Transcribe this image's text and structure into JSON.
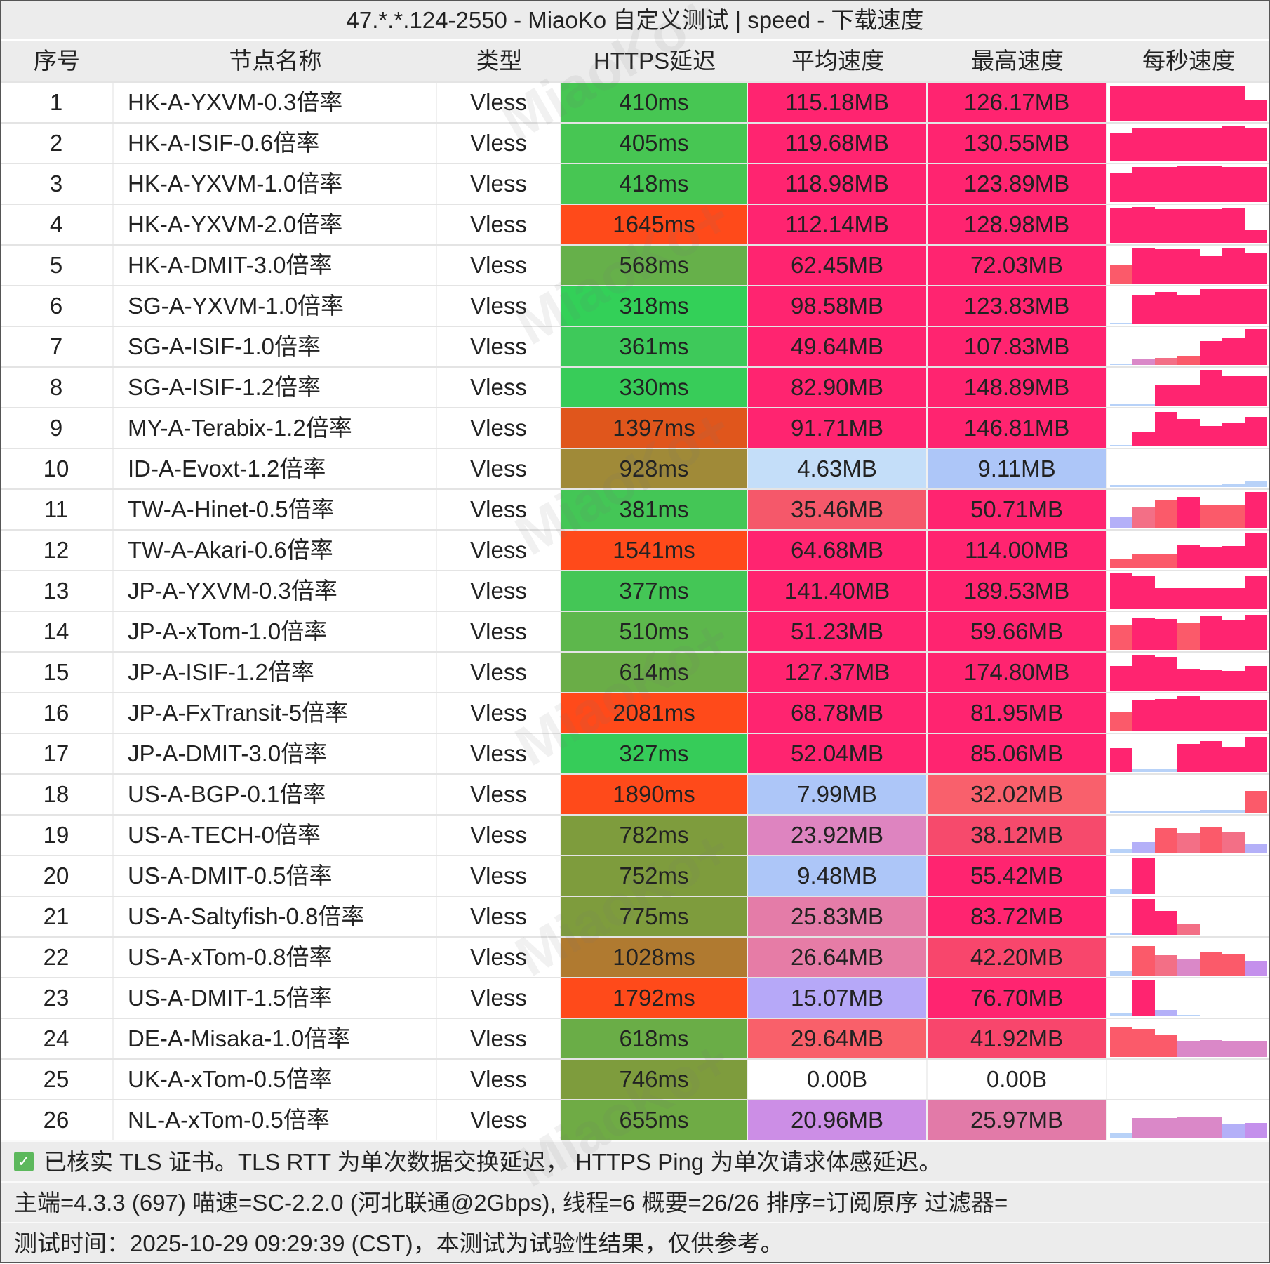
{
  "title": "47.*.*.124-2550 - MiaoKo 自定义测试 | speed - 下载速度",
  "headers": [
    "序号",
    "节点名称",
    "类型",
    "HTTPS延迟",
    "平均速度",
    "最高速度",
    "每秒速度"
  ],
  "watermark": "MiaoKo+",
  "palette": {
    "P": "#ff2470",
    "R": "#fb5a6a",
    "S": "#f36f86",
    "M": "#da88c8",
    "V": "#c490ec",
    "L": "#b4b0f8",
    "B": "#b8d2f8"
  },
  "rows": [
    {
      "id": "1",
      "name": "HK-A-YXVM-0.3倍率",
      "type": "Vless",
      "latency": "410ms",
      "lat_color": "#47c653",
      "avg": "115.18MB",
      "avg_color": "#ff2470",
      "max": "126.17MB",
      "max_color": "#ff2470",
      "bars": [
        [
          0.95,
          "P"
        ],
        [
          0.95,
          "P"
        ],
        [
          0.97,
          "P"
        ],
        [
          0.97,
          "P"
        ],
        [
          0.97,
          "P"
        ],
        [
          0.95,
          "P"
        ],
        [
          0.55,
          "P"
        ]
      ]
    },
    {
      "id": "2",
      "name": "HK-A-ISIF-0.6倍率",
      "type": "Vless",
      "latency": "405ms",
      "lat_color": "#47c653",
      "avg": "119.68MB",
      "avg_color": "#ff2470",
      "max": "130.55MB",
      "max_color": "#ff2470",
      "bars": [
        [
          0.78,
          "P"
        ],
        [
          0.92,
          "P"
        ],
        [
          0.93,
          "P"
        ],
        [
          0.93,
          "P"
        ],
        [
          0.93,
          "P"
        ],
        [
          0.97,
          "P"
        ],
        [
          0.92,
          "P"
        ]
      ]
    },
    {
      "id": "3",
      "name": "HK-A-YXVM-1.0倍率",
      "type": "Vless",
      "latency": "418ms",
      "lat_color": "#47c653",
      "avg": "118.98MB",
      "avg_color": "#ff2470",
      "max": "123.89MB",
      "max_color": "#ff2470",
      "bars": [
        [
          0.8,
          "P"
        ],
        [
          0.97,
          "P"
        ],
        [
          0.97,
          "P"
        ],
        [
          0.98,
          "P"
        ],
        [
          0.98,
          "P"
        ],
        [
          0.97,
          "P"
        ],
        [
          0.97,
          "P"
        ]
      ]
    },
    {
      "id": "4",
      "name": "HK-A-YXVM-2.0倍率",
      "type": "Vless",
      "latency": "1645ms",
      "lat_color": "#ff4a1a",
      "avg": "112.14MB",
      "avg_color": "#ff2470",
      "max": "128.98MB",
      "max_color": "#ff2470",
      "bars": [
        [
          0.95,
          "P"
        ],
        [
          0.98,
          "P"
        ],
        [
          0.92,
          "P"
        ],
        [
          0.92,
          "P"
        ],
        [
          0.92,
          "P"
        ],
        [
          0.95,
          "P"
        ],
        [
          0.35,
          "P"
        ]
      ]
    },
    {
      "id": "5",
      "name": "HK-A-DMIT-3.0倍率",
      "type": "Vless",
      "latency": "568ms",
      "lat_color": "#66b04a",
      "avg": "62.45MB",
      "avg_color": "#ff2470",
      "max": "72.03MB",
      "max_color": "#ff2470",
      "bars": [
        [
          0.5,
          "R"
        ],
        [
          0.97,
          "P"
        ],
        [
          0.95,
          "P"
        ],
        [
          0.95,
          "P"
        ],
        [
          0.75,
          "P"
        ],
        [
          0.97,
          "P"
        ],
        [
          0.85,
          "P"
        ]
      ]
    },
    {
      "id": "6",
      "name": "SG-A-YXVM-1.0倍率",
      "type": "Vless",
      "latency": "318ms",
      "lat_color": "#33d058",
      "avg": "98.58MB",
      "avg_color": "#ff2470",
      "max": "123.83MB",
      "max_color": "#ff2470",
      "bars": [
        [
          0.03,
          "B"
        ],
        [
          0.78,
          "P"
        ],
        [
          0.88,
          "P"
        ],
        [
          0.78,
          "P"
        ],
        [
          0.97,
          "P"
        ],
        [
          0.97,
          "P"
        ],
        [
          0.97,
          "P"
        ]
      ]
    },
    {
      "id": "7",
      "name": "SG-A-ISIF-1.0倍率",
      "type": "Vless",
      "latency": "361ms",
      "lat_color": "#3ec95a",
      "avg": "49.64MB",
      "avg_color": "#ff2470",
      "max": "107.83MB",
      "max_color": "#ff2470",
      "bars": [
        [
          0.03,
          "B"
        ],
        [
          0.18,
          "M"
        ],
        [
          0.2,
          "S"
        ],
        [
          0.25,
          "R"
        ],
        [
          0.65,
          "P"
        ],
        [
          0.75,
          "P"
        ],
        [
          0.98,
          "P"
        ]
      ]
    },
    {
      "id": "8",
      "name": "SG-A-ISIF-1.2倍率",
      "type": "Vless",
      "latency": "330ms",
      "lat_color": "#38cc59",
      "avg": "82.90MB",
      "avg_color": "#ff2470",
      "max": "148.89MB",
      "max_color": "#ff2470",
      "bars": [
        [
          0.04,
          "B"
        ],
        [
          0.04,
          "B"
        ],
        [
          0.55,
          "P"
        ],
        [
          0.55,
          "P"
        ],
        [
          0.98,
          "P"
        ],
        [
          0.8,
          "P"
        ],
        [
          0.8,
          "P"
        ]
      ]
    },
    {
      "id": "9",
      "name": "MY-A-Terabix-1.2倍率",
      "type": "Vless",
      "latency": "1397ms",
      "lat_color": "#e0561c",
      "avg": "91.71MB",
      "avg_color": "#ff2470",
      "max": "146.81MB",
      "max_color": "#ff2470",
      "bars": [
        [
          0.03,
          "B"
        ],
        [
          0.4,
          "P"
        ],
        [
          0.95,
          "P"
        ],
        [
          0.75,
          "P"
        ],
        [
          0.55,
          "P"
        ],
        [
          0.65,
          "P"
        ],
        [
          0.8,
          "P"
        ]
      ]
    },
    {
      "id": "10",
      "name": "ID-A-Evoxt-1.2倍率",
      "type": "Vless",
      "latency": "928ms",
      "lat_color": "#a08a38",
      "avg": "4.63MB",
      "avg_color": "#c4def9",
      "max": "9.11MB",
      "max_color": "#adc6f8",
      "bars": [
        [
          0.06,
          "B"
        ],
        [
          0.06,
          "B"
        ],
        [
          0.05,
          "B"
        ],
        [
          0.05,
          "B"
        ],
        [
          0.05,
          "B"
        ],
        [
          0.1,
          "B"
        ],
        [
          0.17,
          "B"
        ]
      ]
    },
    {
      "id": "11",
      "name": "TW-A-Hinet-0.5倍率",
      "type": "Vless",
      "latency": "381ms",
      "lat_color": "#44c656",
      "avg": "35.46MB",
      "avg_color": "#f5586a",
      "max": "50.71MB",
      "max_color": "#ff2470",
      "bars": [
        [
          0.3,
          "L"
        ],
        [
          0.55,
          "S"
        ],
        [
          0.75,
          "R"
        ],
        [
          0.85,
          "P"
        ],
        [
          0.62,
          "R"
        ],
        [
          0.63,
          "R"
        ],
        [
          0.98,
          "P"
        ]
      ]
    },
    {
      "id": "12",
      "name": "TW-A-Akari-0.6倍率",
      "type": "Vless",
      "latency": "1541ms",
      "lat_color": "#ff4a1a",
      "avg": "64.68MB",
      "avg_color": "#ff2470",
      "max": "114.00MB",
      "max_color": "#ff2470",
      "bars": [
        [
          0.25,
          "R"
        ],
        [
          0.38,
          "R"
        ],
        [
          0.38,
          "R"
        ],
        [
          0.65,
          "P"
        ],
        [
          0.58,
          "P"
        ],
        [
          0.62,
          "P"
        ],
        [
          0.98,
          "P"
        ]
      ]
    },
    {
      "id": "13",
      "name": "JP-A-YXVM-0.3倍率",
      "type": "Vless",
      "latency": "377ms",
      "lat_color": "#44c656",
      "avg": "141.40MB",
      "avg_color": "#ff2470",
      "max": "189.53MB",
      "max_color": "#ff2470",
      "bars": [
        [
          0.98,
          "P"
        ],
        [
          0.9,
          "P"
        ],
        [
          0.57,
          "P"
        ],
        [
          0.57,
          "P"
        ],
        [
          0.57,
          "P"
        ],
        [
          0.57,
          "P"
        ],
        [
          0.9,
          "P"
        ]
      ]
    },
    {
      "id": "14",
      "name": "JP-A-xTom-1.0倍率",
      "type": "Vless",
      "latency": "510ms",
      "lat_color": "#5db74c",
      "avg": "51.23MB",
      "avg_color": "#ff2470",
      "max": "59.66MB",
      "max_color": "#ff2470",
      "bars": [
        [
          0.7,
          "R"
        ],
        [
          0.87,
          "P"
        ],
        [
          0.85,
          "P"
        ],
        [
          0.75,
          "R"
        ],
        [
          0.92,
          "P"
        ],
        [
          0.8,
          "P"
        ],
        [
          0.97,
          "P"
        ]
      ]
    },
    {
      "id": "15",
      "name": "JP-A-ISIF-1.2倍率",
      "type": "Vless",
      "latency": "614ms",
      "lat_color": "#6aad47",
      "avg": "127.37MB",
      "avg_color": "#ff2470",
      "max": "174.80MB",
      "max_color": "#ff2470",
      "bars": [
        [
          0.68,
          "P"
        ],
        [
          0.98,
          "P"
        ],
        [
          0.92,
          "P"
        ],
        [
          0.6,
          "P"
        ],
        [
          0.58,
          "P"
        ],
        [
          0.53,
          "P"
        ],
        [
          0.68,
          "P"
        ]
      ]
    },
    {
      "id": "16",
      "name": "JP-A-FxTransit-5倍率",
      "type": "Vless",
      "latency": "2081ms",
      "lat_color": "#ff4a1a",
      "avg": "68.78MB",
      "avg_color": "#ff2470",
      "max": "81.95MB",
      "max_color": "#ff2470",
      "bars": [
        [
          0.52,
          "R"
        ],
        [
          0.85,
          "P"
        ],
        [
          0.88,
          "P"
        ],
        [
          0.98,
          "P"
        ],
        [
          0.87,
          "P"
        ],
        [
          0.87,
          "P"
        ],
        [
          0.85,
          "P"
        ]
      ]
    },
    {
      "id": "17",
      "name": "JP-A-DMIT-3.0倍率",
      "type": "Vless",
      "latency": "327ms",
      "lat_color": "#36cc59",
      "avg": "52.04MB",
      "avg_color": "#ff2470",
      "max": "85.06MB",
      "max_color": "#ff2470",
      "bars": [
        [
          0.65,
          "P"
        ],
        [
          0.1,
          "B"
        ],
        [
          0.08,
          "B"
        ],
        [
          0.77,
          "P"
        ],
        [
          0.85,
          "P"
        ],
        [
          0.7,
          "P"
        ],
        [
          0.97,
          "P"
        ]
      ]
    },
    {
      "id": "18",
      "name": "US-A-BGP-0.1倍率",
      "type": "Vless",
      "latency": "1890ms",
      "lat_color": "#ff4a1a",
      "avg": "7.99MB",
      "avg_color": "#adc6f8",
      "max": "32.02MB",
      "max_color": "#f9606c",
      "bars": [
        [
          0.05,
          "B"
        ],
        [
          0.06,
          "B"
        ],
        [
          0.06,
          "B"
        ],
        [
          0.06,
          "B"
        ],
        [
          0.07,
          "B"
        ],
        [
          0.08,
          "B"
        ],
        [
          0.6,
          "R"
        ]
      ]
    },
    {
      "id": "19",
      "name": "US-A-TECH-0倍率",
      "type": "Vless",
      "latency": "782ms",
      "lat_color": "#7e9c3d",
      "avg": "23.92MB",
      "avg_color": "#de84c0",
      "max": "38.12MB",
      "max_color": "#f64a6c",
      "bars": [
        [
          0.12,
          "B"
        ],
        [
          0.3,
          "L"
        ],
        [
          0.7,
          "R"
        ],
        [
          0.55,
          "S"
        ],
        [
          0.73,
          "R"
        ],
        [
          0.57,
          "S"
        ],
        [
          0.25,
          "L"
        ]
      ]
    },
    {
      "id": "20",
      "name": "US-A-DMIT-0.5倍率",
      "type": "Vless",
      "latency": "752ms",
      "lat_color": "#7e9c3d",
      "avg": "9.48MB",
      "avg_color": "#adc6f8",
      "max": "55.42MB",
      "max_color": "#ff2470",
      "bars": [
        [
          0.15,
          "B"
        ],
        [
          0.98,
          "P"
        ],
        [
          0,
          "P"
        ],
        [
          0,
          "P"
        ],
        [
          0,
          "P"
        ],
        [
          0,
          "P"
        ],
        [
          0,
          "P"
        ]
      ]
    },
    {
      "id": "21",
      "name": "US-A-Saltyfish-0.8倍率",
      "type": "Vless",
      "latency": "775ms",
      "lat_color": "#7e9c3d",
      "avg": "25.83MB",
      "avg_color": "#e47ca8",
      "max": "83.72MB",
      "max_color": "#ff2470",
      "bars": [
        [
          0.05,
          "B"
        ],
        [
          0.98,
          "P"
        ],
        [
          0.65,
          "P"
        ],
        [
          0.3,
          "S"
        ],
        [
          0,
          "P"
        ],
        [
          0,
          "P"
        ],
        [
          0,
          "P"
        ]
      ]
    },
    {
      "id": "22",
      "name": "US-A-xTom-0.8倍率",
      "type": "Vless",
      "latency": "1028ms",
      "lat_color": "#b07a30",
      "avg": "26.64MB",
      "avg_color": "#e67ca6",
      "max": "42.20MB",
      "max_color": "#f8466c",
      "bars": [
        [
          0.14,
          "B"
        ],
        [
          0.8,
          "R"
        ],
        [
          0.55,
          "S"
        ],
        [
          0.45,
          "M"
        ],
        [
          0.63,
          "R"
        ],
        [
          0.6,
          "R"
        ],
        [
          0.4,
          "V"
        ]
      ]
    },
    {
      "id": "23",
      "name": "US-A-DMIT-1.5倍率",
      "type": "Vless",
      "latency": "1792ms",
      "lat_color": "#ff4a1a",
      "avg": "15.07MB",
      "avg_color": "#b6a8f8",
      "max": "76.70MB",
      "max_color": "#ff2470",
      "bars": [
        [
          0.1,
          "B"
        ],
        [
          0.98,
          "P"
        ],
        [
          0.18,
          "L"
        ],
        [
          0.02,
          "B"
        ],
        [
          0,
          "P"
        ],
        [
          0,
          "P"
        ],
        [
          0,
          "P"
        ]
      ]
    },
    {
      "id": "24",
      "name": "DE-A-Misaka-1.0倍率",
      "type": "Vless",
      "latency": "618ms",
      "lat_color": "#6aad47",
      "avg": "29.64MB",
      "avg_color": "#f9606a",
      "max": "41.92MB",
      "max_color": "#f8466c",
      "bars": [
        [
          0.8,
          "R"
        ],
        [
          0.77,
          "R"
        ],
        [
          0.6,
          "R"
        ],
        [
          0.45,
          "M"
        ],
        [
          0.47,
          "M"
        ],
        [
          0.45,
          "M"
        ],
        [
          0.45,
          "M"
        ]
      ]
    },
    {
      "id": "25",
      "name": "UK-A-xTom-0.5倍率",
      "type": "Vless",
      "latency": "746ms",
      "lat_color": "#7e9c3d",
      "avg": "0.00B",
      "avg_color": "#ffffff",
      "max": "0.00B",
      "max_color": "#ffffff",
      "bars": []
    },
    {
      "id": "26",
      "name": "NL-A-xTom-0.5倍率",
      "type": "Vless",
      "latency": "655ms",
      "lat_color": "#6fab45",
      "avg": "20.96MB",
      "avg_color": "#cc8ee6",
      "max": "25.97MB",
      "max_color": "#e27aa8",
      "bars": [
        [
          0.15,
          "B"
        ],
        [
          0.55,
          "M"
        ],
        [
          0.55,
          "M"
        ],
        [
          0.57,
          "M"
        ],
        [
          0.58,
          "M"
        ],
        [
          0.38,
          "L"
        ],
        [
          0.43,
          "V"
        ]
      ]
    }
  ],
  "footer": {
    "check_icon": "checkbox-checked-icon",
    "line1": "已核实 TLS 证书。TLS RTT 为单次数据交换延迟， HTTPS Ping 为单次请求体感延迟。",
    "line2": "主端=4.3.3 (697) 喵速=SC-2.2.0 (河北联通@2Gbps), 线程=6 概要=26/26 排序=订阅原序 过滤器=",
    "line3": "测试时间：2025-10-29 09:29:39 (CST)，本测试为试验性结果，仅供参考。"
  }
}
